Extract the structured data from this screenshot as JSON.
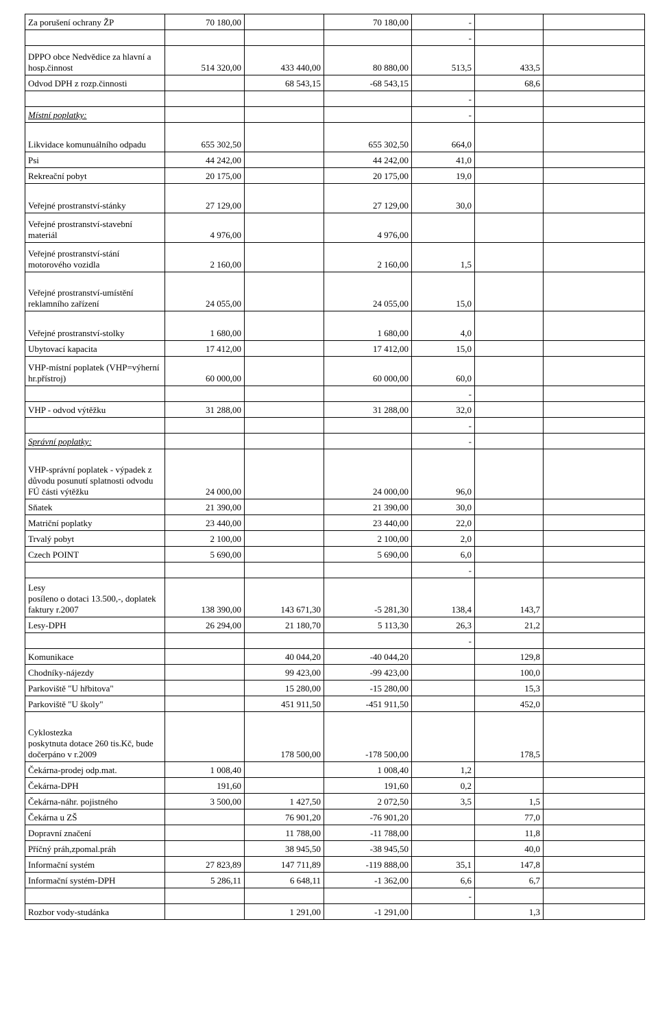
{
  "rows": [
    {
      "c0": "Za porušení ochrany ŽP",
      "c1": "70 180,00",
      "c2": "",
      "c3": "70 180,00",
      "c4": "-",
      "c5": "",
      "c6": ""
    },
    {
      "c0": "",
      "c1": "",
      "c2": "",
      "c3": "",
      "c4": "-",
      "c5": "",
      "c6": ""
    },
    {
      "h": "tall2",
      "c0": "DPPO obce Nedvědice za hlavní a hosp.činnost",
      "c1": "514 320,00",
      "c2": "433 440,00",
      "c3": "80 880,00",
      "c4": "513,5",
      "c5": "433,5",
      "c6": ""
    },
    {
      "c0": "Odvod DPH z rozp.činnosti",
      "c1": "",
      "c2": "68 543,15",
      "c3": "-68 543,15",
      "c4": "",
      "c5": "68,6",
      "c6": ""
    },
    {
      "c0": "",
      "c1": "",
      "c2": "",
      "c3": "",
      "c4": "-",
      "c5": "",
      "c6": ""
    },
    {
      "style": "italic",
      "c0": "Místní poplatky:",
      "c1": "",
      "c2": "",
      "c3": "",
      "c4": "-",
      "c5": "",
      "c6": ""
    },
    {
      "h": "tall2",
      "c0": "Likvidace komunuálního odpadu",
      "c1": "655 302,50",
      "c2": "",
      "c3": "655 302,50",
      "c4": "664,0",
      "c5": "",
      "c6": ""
    },
    {
      "c0": "Psi",
      "c1": "44 242,00",
      "c2": "",
      "c3": "44 242,00",
      "c4": "41,0",
      "c5": "",
      "c6": ""
    },
    {
      "c0": "Rekreační pobyt",
      "c1": "20 175,00",
      "c2": "",
      "c3": "20 175,00",
      "c4": "19,0",
      "c5": "",
      "c6": ""
    },
    {
      "h": "tall2",
      "c0": "Veřejné prostranství-stánky",
      "c1": "27 129,00",
      "c2": "",
      "c3": "27 129,00",
      "c4": "30,0",
      "c5": "",
      "c6": ""
    },
    {
      "h": "tall2",
      "c0": "Veřejné prostranství-stavební materiál",
      "c1": "4 976,00",
      "c2": "",
      "c3": "4 976,00",
      "c4": "",
      "c5": "",
      "c6": ""
    },
    {
      "h": "tall2",
      "c0": "Veřejné prostranství-stání motorového vozidla",
      "c1": "2 160,00",
      "c2": "",
      "c3": "2 160,00",
      "c4": "1,5",
      "c5": "",
      "c6": ""
    },
    {
      "h": "tall",
      "c0": "Veřejné prostranství-umístění reklamního zařízení",
      "c1": "24 055,00",
      "c2": "",
      "c3": "24 055,00",
      "c4": "15,0",
      "c5": "",
      "c6": ""
    },
    {
      "h": "tall2",
      "c0": "Veřejné prostranství-stolky",
      "c1": "1 680,00",
      "c2": "",
      "c3": "1 680,00",
      "c4": "4,0",
      "c5": "",
      "c6": ""
    },
    {
      "c0": "Ubytovací kapacita",
      "c1": "17 412,00",
      "c2": "",
      "c3": "17 412,00",
      "c4": "15,0",
      "c5": "",
      "c6": ""
    },
    {
      "h": "tall2",
      "c0": "VHP-místní poplatek (VHP=výherní hr.přístroj)",
      "c1": "60 000,00",
      "c2": "",
      "c3": "60 000,00",
      "c4": "60,0",
      "c5": "",
      "c6": ""
    },
    {
      "c0": "",
      "c1": "",
      "c2": "",
      "c3": "",
      "c4": "-",
      "c5": "",
      "c6": ""
    },
    {
      "c0": "VHP - odvod výtěžku",
      "c1": "31 288,00",
      "c2": "",
      "c3": "31 288,00",
      "c4": "32,0",
      "c5": "",
      "c6": ""
    },
    {
      "c0": "",
      "c1": "",
      "c2": "",
      "c3": "",
      "c4": "-",
      "c5": "",
      "c6": ""
    },
    {
      "style": "italic",
      "c0": "Správní poplatky:",
      "c1": "",
      "c2": "",
      "c3": "",
      "c4": "-",
      "c5": "",
      "c6": ""
    },
    {
      "h": "tall3",
      "c0": "VHP-správní poplatek - výpadek z důvodu posunutí splatnosti odvodu FÚ části výtěžku",
      "c1": "24 000,00",
      "c2": "",
      "c3": "24 000,00",
      "c4": "96,0",
      "c5": "",
      "c6": ""
    },
    {
      "c0": "Sňatek",
      "c1": "21 390,00",
      "c2": "",
      "c3": "21 390,00",
      "c4": "30,0",
      "c5": "",
      "c6": ""
    },
    {
      "c0": "Matriční poplatky",
      "c1": "23 440,00",
      "c2": "",
      "c3": "23 440,00",
      "c4": "22,0",
      "c5": "",
      "c6": ""
    },
    {
      "c0": "Trvalý pobyt",
      "c1": "2 100,00",
      "c2": "",
      "c3": "2 100,00",
      "c4": "2,0",
      "c5": "",
      "c6": ""
    },
    {
      "c0": "Czech POINT",
      "c1": "5 690,00",
      "c2": "",
      "c3": "5 690,00",
      "c4": "6,0",
      "c5": "",
      "c6": ""
    },
    {
      "c0": "",
      "c1": "",
      "c2": "",
      "c3": "",
      "c4": "-",
      "c5": "",
      "c6": ""
    },
    {
      "h": "tall",
      "c0": "Lesy\n  posíleno o dotaci 13.500,-, doplatek faktury r.2007",
      "c1": "138 390,00",
      "c2": "143 671,30",
      "c3": "-5 281,30",
      "c4": "138,4",
      "c5": "143,7",
      "c6": ""
    },
    {
      "c0": "Lesy-DPH",
      "c1": "26 294,00",
      "c2": "21 180,70",
      "c3": "5 113,30",
      "c4": "26,3",
      "c5": "21,2",
      "c6": ""
    },
    {
      "c0": "",
      "c1": "",
      "c2": "",
      "c3": "",
      "c4": "-",
      "c5": "",
      "c6": ""
    },
    {
      "c0": "Komunikace",
      "c1": "",
      "c2": "40 044,20",
      "c3": "-40 044,20",
      "c4": "",
      "c5": "129,8",
      "c6": ""
    },
    {
      "c0": "Chodníky-nájezdy",
      "c1": "",
      "c2": "99 423,00",
      "c3": "-99 423,00",
      "c4": "",
      "c5": "100,0",
      "c6": ""
    },
    {
      "c0": "Parkoviště  \"U hřbitova\"",
      "c1": "",
      "c2": "15 280,00",
      "c3": "-15 280,00",
      "c4": "",
      "c5": "15,3",
      "c6": ""
    },
    {
      "c0": "Parkoviště \"U školy\"",
      "c1": "",
      "c2": "451 911,50",
      "c3": "-451 911,50",
      "c4": "",
      "c5": "452,0",
      "c6": ""
    },
    {
      "h": "tall3",
      "c0": "Cyklostezka\nposkytnuta dotace 260 tis.Kč, bude dočerpáno v r.2009",
      "c1": "",
      "c2": "178 500,00",
      "c3": "-178 500,00",
      "c4": "",
      "c5": "178,5",
      "c6": ""
    },
    {
      "c0": "Čekárna-prodej odp.mat.",
      "c1": "1 008,40",
      "c2": "",
      "c3": "1 008,40",
      "c4": "1,2",
      "c5": "",
      "c6": ""
    },
    {
      "c0": "Čekárna-DPH",
      "c1": "191,60",
      "c2": "",
      "c3": "191,60",
      "c4": "0,2",
      "c5": "",
      "c6": ""
    },
    {
      "c0": "Čekárna-náhr. pojistného",
      "c1": "3 500,00",
      "c2": "1 427,50",
      "c3": "2 072,50",
      "c4": "3,5",
      "c5": "1,5",
      "c6": ""
    },
    {
      "c0": "Čekárna u ZŠ",
      "c1": "",
      "c2": "76 901,20",
      "c3": "-76 901,20",
      "c4": "",
      "c5": "77,0",
      "c6": ""
    },
    {
      "c0": "Dopravní značení",
      "c1": "",
      "c2": "11 788,00",
      "c3": "-11 788,00",
      "c4": "",
      "c5": "11,8",
      "c6": ""
    },
    {
      "c0": "Příčný práh,zpomal.práh",
      "c1": "",
      "c2": "38 945,50",
      "c3": "-38 945,50",
      "c4": "",
      "c5": "40,0",
      "c6": ""
    },
    {
      "c0": "Informační systém",
      "c1": "27 823,89",
      "c2": "147 711,89",
      "c3": "-119 888,00",
      "c4": "35,1",
      "c5": "147,8",
      "c6": ""
    },
    {
      "c0": "Informační systém-DPH",
      "c1": "5 286,11",
      "c2": "6 648,11",
      "c3": "-1 362,00",
      "c4": "6,6",
      "c5": "6,7",
      "c6": ""
    },
    {
      "c0": "",
      "c1": "",
      "c2": "",
      "c3": "",
      "c4": "-",
      "c5": "",
      "c6": ""
    },
    {
      "c0": "Rozbor vody-studánka",
      "c1": "",
      "c2": "1 291,00",
      "c3": "-1 291,00",
      "c4": "",
      "c5": "1,3",
      "c6": ""
    }
  ]
}
